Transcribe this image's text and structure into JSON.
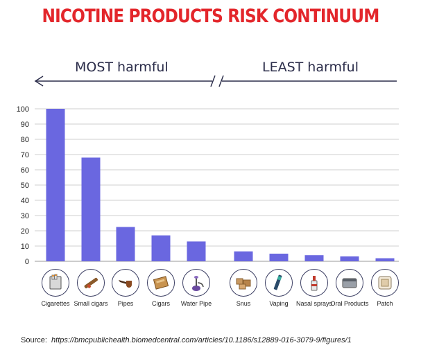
{
  "chart_data": {
    "type": "bar",
    "title": "NICOTINE PRODUCTS RISK CONTINUUM",
    "arrow_left_label": "MOST harmful",
    "arrow_right_label": "LEAST harmful",
    "categories": [
      "Cigarettes",
      "Small cigars",
      "Pipes",
      "Cigars",
      "Water Pipe",
      "Snus",
      "Vaping",
      "Nasal sprays",
      "Oral Products",
      "Patch"
    ],
    "values": [
      100,
      68,
      22.5,
      17,
      13,
      6.5,
      5,
      4,
      3.2,
      2
    ],
    "ylim": [
      0,
      100
    ],
    "yticks": [
      0,
      10,
      20,
      30,
      40,
      50,
      60,
      70,
      80,
      90,
      100
    ],
    "bar_color": "#6a67e0",
    "grid": true
  },
  "icons": [
    "cigarettes-icon",
    "small-cigars-icon",
    "pipe-icon",
    "cigars-icon",
    "water-pipe-icon",
    "snus-icon",
    "vaping-icon",
    "nasal-spray-icon",
    "oral-products-icon",
    "patch-icon"
  ],
  "source": {
    "label": "Source:",
    "url": "https://bmcpublichealth.biomedcentral.com/articles/10.1186/s12889-016-3079-9/figures/1"
  }
}
